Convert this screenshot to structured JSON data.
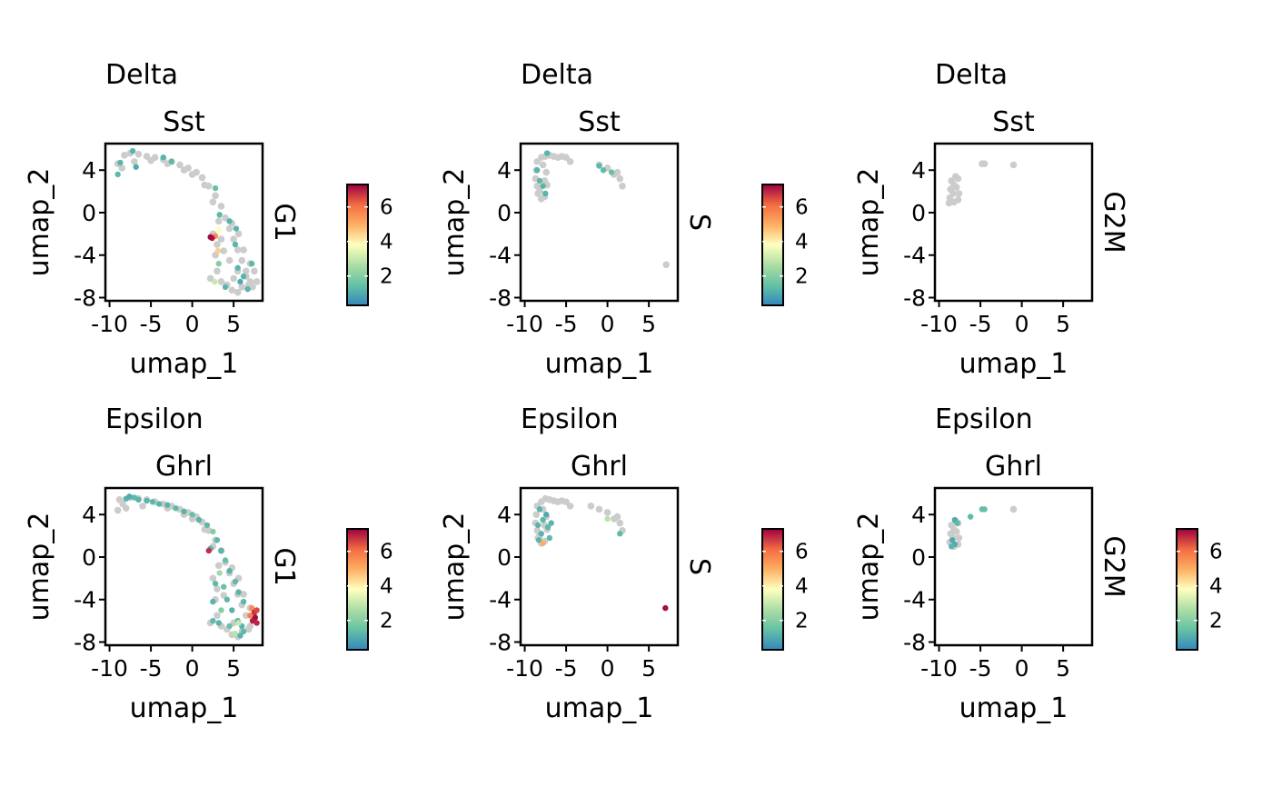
{
  "chart_data": [
    {
      "type": "scatter",
      "group": "Delta",
      "gene": "Sst",
      "phase": "G1",
      "xlabel": "umap_1",
      "ylabel": "umap_2",
      "xlim": [
        -10.5,
        8.5
      ],
      "ylim": [
        -8.3,
        6.5
      ],
      "xticks": [
        "-10",
        "-5",
        "0",
        "5"
      ],
      "yticks": [
        "-8",
        "-4",
        "0",
        "4"
      ],
      "colorbar": true,
      "colorbar_ticks": [
        "2",
        "4",
        "6"
      ],
      "color_range": [
        0.3,
        7.3
      ],
      "background_points": [
        [
          -8.2,
          5.4
        ],
        [
          -7.5,
          5.6
        ],
        [
          -6.5,
          5.5
        ],
        [
          -5.5,
          5.3
        ],
        [
          -4.5,
          5.2
        ],
        [
          -3.5,
          5.0
        ],
        [
          -2.5,
          4.8
        ],
        [
          -1.5,
          4.5
        ],
        [
          -0.5,
          4.2
        ],
        [
          0.5,
          3.8
        ],
        [
          1.2,
          3.3
        ],
        [
          2.0,
          2.5
        ],
        [
          2.8,
          1.6
        ],
        [
          3.5,
          0.6
        ],
        [
          4.0,
          -0.5
        ],
        [
          4.5,
          -1.5
        ],
        [
          5.0,
          -2.5
        ],
        [
          5.5,
          -3.5
        ],
        [
          6.0,
          -4.5
        ],
        [
          6.5,
          -5.5
        ],
        [
          7.0,
          -6.5
        ],
        [
          7.5,
          -5.5
        ],
        [
          7.8,
          -6.5
        ],
        [
          6.0,
          -7.0
        ],
        [
          5.5,
          -7.5
        ],
        [
          4.8,
          -7.3
        ],
        [
          3.5,
          -6.5
        ],
        [
          3.0,
          -5.5
        ],
        [
          2.8,
          -4.0
        ],
        [
          3.0,
          -3.0
        ],
        [
          2.5,
          -2.0
        ],
        [
          3.5,
          -2.5
        ],
        [
          4.5,
          -4.5
        ],
        [
          5.5,
          -5.5
        ],
        [
          6.5,
          -6.0
        ],
        [
          -8.5,
          4.2
        ],
        [
          -9.0,
          4.6
        ],
        [
          -7.0,
          4.8
        ],
        [
          -5.0,
          4.9
        ],
        [
          -3.0,
          4.6
        ],
        [
          -1.0,
          4.0
        ],
        [
          0.0,
          3.6
        ],
        [
          1.5,
          2.6
        ],
        [
          2.5,
          1.0
        ],
        [
          3.2,
          -0.8
        ],
        [
          4.8,
          -1.0
        ],
        [
          5.6,
          -2.0
        ],
        [
          6.2,
          -3.5
        ],
        [
          7.0,
          -4.8
        ],
        [
          7.3,
          -7.0
        ],
        [
          4.2,
          -6.8
        ],
        [
          2.2,
          -6.2
        ],
        [
          3.8,
          -3.6
        ],
        [
          5.0,
          -6.2
        ],
        [
          6.8,
          -6.8
        ]
      ],
      "expr_points": [
        [
          -7.2,
          5.8,
          1.2
        ],
        [
          -8.7,
          4.7,
          1.2
        ],
        [
          -9.0,
          3.6,
          1.3
        ],
        [
          -6.8,
          4.3,
          1.0
        ],
        [
          -3.5,
          5.2,
          1.2
        ],
        [
          -2.5,
          4.8,
          1.3
        ],
        [
          2.8,
          2.3,
          1.5
        ],
        [
          3.3,
          -0.2,
          1.3
        ],
        [
          4.5,
          -0.8,
          1.2
        ],
        [
          5.3,
          -1.5,
          1.2
        ],
        [
          5.2,
          -3.0,
          1.2
        ],
        [
          3.2,
          -1.6,
          3.8
        ],
        [
          2.8,
          -2.2,
          5.5
        ],
        [
          2.4,
          -2.4,
          7.0
        ],
        [
          2.2,
          -2.3,
          7.2
        ],
        [
          3.2,
          -4.8,
          2.0
        ],
        [
          2.7,
          -6.5,
          3.0
        ],
        [
          3.1,
          -3.6,
          4.5
        ],
        [
          5.5,
          -5.2,
          1.2
        ],
        [
          6.2,
          -6.0,
          1.2
        ],
        [
          6.7,
          -7.2,
          1.2
        ],
        [
          7.2,
          -4.8,
          1.3
        ],
        [
          4.0,
          -7.0,
          1.2
        ],
        [
          5.8,
          -6.5,
          1.0
        ]
      ]
    },
    {
      "type": "scatter",
      "group": "Delta",
      "gene": "Sst",
      "phase": "S",
      "xlabel": "umap_1",
      "ylabel": "umap_2",
      "xlim": [
        -10.5,
        8.5
      ],
      "ylim": [
        -8.3,
        6.5
      ],
      "xticks": [
        "-10",
        "-5",
        "0",
        "5"
      ],
      "yticks": [
        "-8",
        "-4",
        "0",
        "4"
      ],
      "colorbar": true,
      "colorbar_ticks": [
        "2",
        "4",
        "6"
      ],
      "color_range": [
        0.3,
        7.3
      ],
      "background_points": [
        [
          -8.5,
          4.8
        ],
        [
          -8.0,
          5.2
        ],
        [
          -7.5,
          5.3
        ],
        [
          -7.0,
          5.4
        ],
        [
          -6.5,
          5.3
        ],
        [
          -6.0,
          5.2
        ],
        [
          -5.5,
          5.3
        ],
        [
          -5.0,
          5.2
        ],
        [
          -4.5,
          4.8
        ],
        [
          -8.6,
          4.0
        ],
        [
          -8.7,
          3.2
        ],
        [
          -8.5,
          2.5
        ],
        [
          -8.4,
          1.8
        ],
        [
          -8.0,
          1.3
        ],
        [
          -7.6,
          1.5
        ],
        [
          -7.3,
          2.6
        ],
        [
          -7.4,
          3.8
        ],
        [
          -7.8,
          4.5
        ],
        [
          -1.0,
          4.5
        ],
        [
          0.0,
          4.2
        ],
        [
          0.8,
          3.6
        ],
        [
          1.5,
          3.2
        ],
        [
          1.8,
          2.5
        ],
        [
          1.2,
          3.8
        ],
        [
          -8.2,
          2.0
        ],
        [
          -7.6,
          3.0
        ],
        [
          7.1,
          -4.9
        ]
      ],
      "expr_points": [
        [
          -7.3,
          5.6,
          1.2
        ],
        [
          -8.5,
          4.0,
          1.2
        ],
        [
          -8.2,
          3.0,
          1.3
        ],
        [
          -7.8,
          2.5,
          1.2
        ],
        [
          -7.5,
          1.8,
          1.2
        ],
        [
          -1.0,
          4.4,
          1.3
        ],
        [
          -0.5,
          4.0,
          1.3
        ],
        [
          0.5,
          3.8,
          1.5
        ]
      ]
    },
    {
      "type": "scatter",
      "group": "Delta",
      "gene": "Sst",
      "phase": "G2M",
      "xlabel": "umap_1",
      "ylabel": "umap_2",
      "xlim": [
        -10.5,
        8.5
      ],
      "ylim": [
        -8.3,
        6.5
      ],
      "xticks": [
        "-10",
        "-5",
        "0",
        "5"
      ],
      "yticks": [
        "-8",
        "-4",
        "0",
        "4"
      ],
      "colorbar": false,
      "colorbar_ticks": [],
      "color_range": [
        0.3,
        7.3
      ],
      "background_points": [
        [
          -8.0,
          3.4
        ],
        [
          -8.5,
          3.0
        ],
        [
          -8.2,
          2.6
        ],
        [
          -8.6,
          2.2
        ],
        [
          -8.3,
          1.8
        ],
        [
          -8.7,
          1.4
        ],
        [
          -8.2,
          1.0
        ],
        [
          -7.7,
          1.2
        ],
        [
          -7.6,
          1.8
        ],
        [
          -7.9,
          2.4
        ],
        [
          -7.7,
          3.2
        ],
        [
          -8.8,
          0.9
        ],
        [
          -4.8,
          4.6
        ],
        [
          -4.5,
          4.6
        ],
        [
          -1.0,
          4.5
        ]
      ],
      "expr_points": []
    },
    {
      "type": "scatter",
      "group": "Epsilon",
      "gene": "Ghrl",
      "phase": "G1",
      "xlabel": "umap_1",
      "ylabel": "umap_2",
      "xlim": [
        -10.5,
        8.5
      ],
      "ylim": [
        -8.3,
        6.5
      ],
      "xticks": [
        "-10",
        "-5",
        "0",
        "5"
      ],
      "yticks": [
        "-8",
        "-4",
        "0",
        "4"
      ],
      "colorbar": true,
      "colorbar_ticks": [
        "2",
        "4",
        "6"
      ],
      "color_range": [
        0.3,
        7.3
      ],
      "background_points": [
        [
          -8.8,
          5.4
        ],
        [
          -8.4,
          5.0
        ],
        [
          -7.5,
          5.6
        ],
        [
          -6.5,
          5.5
        ],
        [
          -5.5,
          5.4
        ],
        [
          -4.5,
          5.2
        ],
        [
          -3.5,
          5.0
        ],
        [
          -2.5,
          4.8
        ],
        [
          -1.5,
          4.5
        ],
        [
          -0.5,
          4.2
        ],
        [
          0.5,
          3.8
        ],
        [
          1.2,
          3.3
        ],
        [
          2.0,
          2.5
        ],
        [
          2.8,
          1.6
        ],
        [
          3.5,
          0.6
        ],
        [
          4.0,
          -0.5
        ],
        [
          4.5,
          -1.5
        ],
        [
          5.0,
          -2.5
        ],
        [
          5.5,
          -3.5
        ],
        [
          6.0,
          -4.5
        ],
        [
          6.5,
          -5.5
        ],
        [
          7.0,
          -6.5
        ],
        [
          7.5,
          -5.5
        ],
        [
          6.0,
          -7.0
        ],
        [
          5.5,
          -7.5
        ],
        [
          4.8,
          -7.3
        ],
        [
          3.5,
          -6.5
        ],
        [
          3.0,
          -5.5
        ],
        [
          2.8,
          -4.0
        ],
        [
          3.0,
          -3.0
        ],
        [
          2.5,
          -2.0
        ],
        [
          -9.0,
          4.4
        ],
        [
          -8.0,
          4.6
        ],
        [
          -6.0,
          4.8
        ],
        [
          -3.0,
          4.6
        ],
        [
          -1.0,
          4.0
        ],
        [
          0.0,
          3.6
        ],
        [
          1.5,
          2.6
        ],
        [
          2.5,
          1.0
        ],
        [
          3.2,
          -0.8
        ],
        [
          4.8,
          -1.0
        ],
        [
          5.6,
          -2.0
        ],
        [
          6.2,
          -3.5
        ],
        [
          7.0,
          -4.8
        ],
        [
          4.2,
          -6.8
        ],
        [
          2.2,
          -6.2
        ],
        [
          3.8,
          -3.6
        ],
        [
          5.0,
          -6.2
        ],
        [
          6.8,
          -6.8
        ]
      ],
      "expr_points": [
        [
          -8.0,
          5.5,
          1.2
        ],
        [
          -7.6,
          5.7,
          1.0
        ],
        [
          -7.0,
          5.6,
          1.3
        ],
        [
          -6.5,
          5.4,
          1.2
        ],
        [
          -5.5,
          5.3,
          1.2
        ],
        [
          -4.8,
          5.2,
          1.3
        ],
        [
          -4.0,
          5.0,
          1.2
        ],
        [
          -3.0,
          4.9,
          1.2
        ],
        [
          -2.0,
          4.6,
          1.3
        ],
        [
          -1.0,
          4.3,
          1.2
        ],
        [
          0.0,
          4.0,
          1.5
        ],
        [
          0.8,
          3.5,
          1.2
        ],
        [
          1.8,
          3.0,
          1.3
        ],
        [
          2.5,
          2.4,
          2.0
        ],
        [
          3.0,
          1.6,
          1.3
        ],
        [
          3.5,
          0.6,
          1.2
        ],
        [
          4.0,
          -0.3,
          1.5
        ],
        [
          4.5,
          -1.3,
          1.2
        ],
        [
          5.2,
          -2.3,
          1.3
        ],
        [
          5.6,
          -3.3,
          1.2
        ],
        [
          6.2,
          -4.2,
          1.3
        ],
        [
          2.2,
          0.8,
          1.2
        ],
        [
          3.3,
          -1.5,
          2.5
        ],
        [
          2.8,
          -2.5,
          1.3
        ],
        [
          3.8,
          -2.8,
          1.5
        ],
        [
          2.5,
          -4.2,
          1.2
        ],
        [
          3.5,
          -5.0,
          2.0
        ],
        [
          4.2,
          -4.0,
          1.3
        ],
        [
          4.8,
          -5.0,
          1.2
        ],
        [
          2.5,
          -6.0,
          1.3
        ],
        [
          3.2,
          -6.2,
          1.2
        ],
        [
          4.5,
          -6.5,
          1.5
        ],
        [
          5.5,
          -6.0,
          1.3
        ],
        [
          6.0,
          -6.5,
          1.2
        ],
        [
          5.2,
          -7.2,
          2.8
        ],
        [
          6.2,
          -7.0,
          1.3
        ],
        [
          5.8,
          -7.4,
          1.2
        ],
        [
          5.6,
          -6.2,
          3.0
        ],
        [
          2.0,
          0.6,
          6.8
        ],
        [
          7.2,
          -4.8,
          5.6
        ],
        [
          7.5,
          -5.2,
          6.8
        ],
        [
          7.6,
          -5.7,
          7.2
        ],
        [
          7.8,
          -5.0,
          6.5
        ],
        [
          7.3,
          -6.0,
          7.0
        ],
        [
          7.8,
          -6.2,
          6.9
        ],
        [
          7.0,
          -5.5,
          5.8
        ]
      ]
    },
    {
      "type": "scatter",
      "group": "Epsilon",
      "gene": "Ghrl",
      "phase": "S",
      "xlabel": "umap_1",
      "ylabel": "umap_2",
      "xlim": [
        -10.5,
        8.5
      ],
      "ylim": [
        -8.3,
        6.5
      ],
      "xticks": [
        "-10",
        "-5",
        "0",
        "5"
      ],
      "yticks": [
        "-8",
        "-4",
        "0",
        "4"
      ],
      "colorbar": true,
      "colorbar_ticks": [
        "2",
        "4",
        "6"
      ],
      "color_range": [
        0.3,
        7.3
      ],
      "background_points": [
        [
          -8.5,
          4.8
        ],
        [
          -8.0,
          5.2
        ],
        [
          -7.5,
          5.5
        ],
        [
          -7.0,
          5.4
        ],
        [
          -6.5,
          5.3
        ],
        [
          -6.0,
          5.2
        ],
        [
          -5.5,
          5.3
        ],
        [
          -5.0,
          5.2
        ],
        [
          -4.5,
          4.8
        ],
        [
          -8.6,
          4.0
        ],
        [
          -8.7,
          3.2
        ],
        [
          -8.5,
          2.5
        ],
        [
          -8.4,
          1.8
        ],
        [
          -8.0,
          1.3
        ],
        [
          -7.6,
          1.5
        ],
        [
          -7.3,
          2.6
        ],
        [
          -7.4,
          3.8
        ],
        [
          -7.8,
          4.5
        ],
        [
          -2.0,
          4.8
        ],
        [
          -1.0,
          4.5
        ],
        [
          0.0,
          4.2
        ],
        [
          0.8,
          3.6
        ],
        [
          1.5,
          3.2
        ],
        [
          1.8,
          2.5
        ],
        [
          1.2,
          3.8
        ],
        [
          -8.2,
          2.0
        ],
        [
          -7.6,
          3.0
        ]
      ],
      "expr_points": [
        [
          -8.2,
          4.5,
          1.2
        ],
        [
          -7.4,
          4.0,
          1.0
        ],
        [
          -7.8,
          3.5,
          1.3
        ],
        [
          -8.4,
          3.0,
          1.2
        ],
        [
          -7.2,
          2.8,
          1.3
        ],
        [
          -8.0,
          2.2,
          1.2
        ],
        [
          -8.3,
          1.6,
          1.2
        ],
        [
          -7.8,
          1.3,
          5.0
        ],
        [
          -7.0,
          1.8,
          1.3
        ],
        [
          -6.8,
          3.2,
          1.2
        ],
        [
          0.0,
          3.6,
          2.8
        ],
        [
          1.5,
          2.2,
          1.3
        ],
        [
          7.0,
          -4.8,
          7.2
        ]
      ]
    },
    {
      "type": "scatter",
      "group": "Epsilon",
      "gene": "Ghrl",
      "phase": "G2M",
      "xlabel": "umap_1",
      "ylabel": "umap_2",
      "xlim": [
        -10.5,
        8.5
      ],
      "ylim": [
        -8.3,
        6.5
      ],
      "xticks": [
        "-10",
        "-5",
        "0",
        "5"
      ],
      "yticks": [
        "-8",
        "-4",
        "0",
        "4"
      ],
      "colorbar": true,
      "colorbar_ticks": [
        "2",
        "4",
        "6"
      ],
      "color_range": [
        0.3,
        7.3
      ],
      "background_points": [
        [
          -8.0,
          3.4
        ],
        [
          -8.5,
          3.0
        ],
        [
          -8.2,
          2.6
        ],
        [
          -8.6,
          2.2
        ],
        [
          -8.3,
          1.8
        ],
        [
          -8.7,
          1.4
        ],
        [
          -8.2,
          1.0
        ],
        [
          -7.7,
          1.2
        ],
        [
          -7.6,
          1.8
        ],
        [
          -7.9,
          2.4
        ],
        [
          -7.7,
          3.2
        ],
        [
          -1.0,
          4.5
        ]
      ],
      "expr_points": [
        [
          -8.1,
          3.5,
          1.0
        ],
        [
          -7.8,
          3.2,
          1.3
        ],
        [
          -8.4,
          1.6,
          1.0
        ],
        [
          -8.1,
          1.2,
          1.0
        ],
        [
          -8.5,
          1.0,
          1.2
        ],
        [
          -6.2,
          3.8,
          1.3
        ],
        [
          -4.8,
          4.5,
          1.4
        ],
        [
          -4.5,
          4.5,
          1.4
        ]
      ]
    }
  ]
}
